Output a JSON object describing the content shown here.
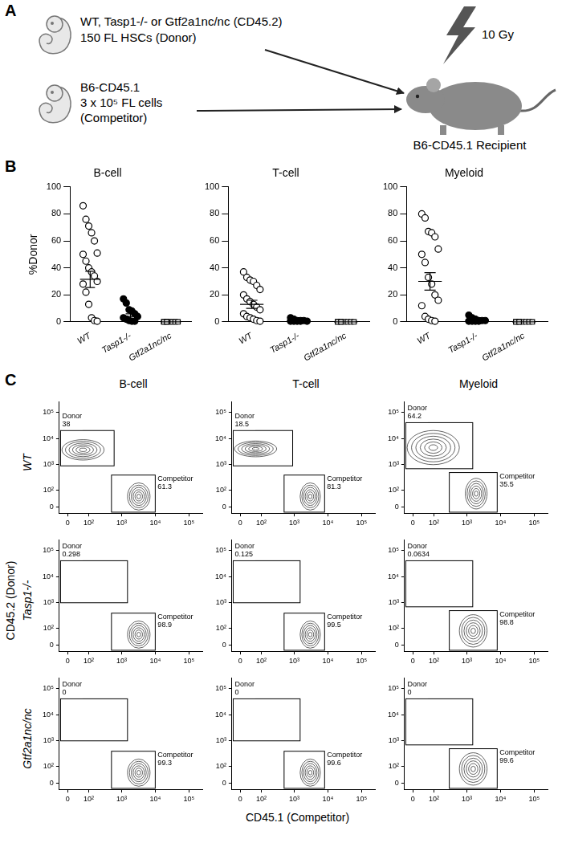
{
  "panel_labels": [
    "A",
    "B",
    "C"
  ],
  "diagram": {
    "donor": [
      "WT, Tasp1-/- or Gtf2a1nc/nc (CD45.2)",
      "150 FL HSCs (Donor)"
    ],
    "competitor": [
      "B6-CD45.1",
      "3 x 10⁵ FL cells",
      "(Competitor)"
    ],
    "irradiation": "10 Gy",
    "recipient": "B6-CD45.1 Recipient"
  },
  "chart_data": [
    {
      "type": "scatter",
      "title": "B-cell",
      "ylabel": "%Donor",
      "ylim": [
        0,
        100
      ],
      "yticks": [
        0,
        20,
        40,
        60,
        80,
        100
      ],
      "grid": false,
      "series": [
        {
          "name": "WT",
          "marker": "open_circle",
          "color": "#000000",
          "mean": 31.5,
          "error": 6,
          "values": [
            86,
            76,
            71,
            66,
            60,
            51,
            50,
            45,
            40,
            37,
            34,
            30,
            28,
            22,
            13,
            3,
            1,
            0.5
          ]
        },
        {
          "name": "Tasp1-/-",
          "marker": "filled_circle",
          "color": "#000000",
          "mean": 4,
          "error": 2,
          "values": [
            17,
            14,
            9,
            8,
            6,
            4,
            3,
            2,
            1,
            0.5,
            0.5
          ]
        },
        {
          "name": "Gtf2a1nc/nc",
          "marker": "open_square",
          "color": "#000000",
          "mean": 0,
          "error": 0,
          "values": [
            0,
            0,
            0,
            0,
            0,
            0,
            0,
            0
          ]
        }
      ]
    },
    {
      "type": "scatter",
      "title": "T-cell",
      "ylim": [
        0,
        100
      ],
      "yticks": [
        0,
        20,
        40,
        60,
        80,
        100
      ],
      "grid": false,
      "series": [
        {
          "name": "WT",
          "marker": "open_circle",
          "color": "#000000",
          "mean": 13,
          "error": 3,
          "values": [
            37,
            33,
            31,
            30,
            27,
            24,
            20,
            17,
            15,
            13,
            11,
            9,
            6,
            4,
            3,
            2,
            1,
            0.5
          ]
        },
        {
          "name": "Tasp1-/-",
          "marker": "filled_circle",
          "color": "#000000",
          "mean": 1,
          "error": 0.4,
          "values": [
            3,
            2,
            1,
            1,
            1,
            0.5,
            0.5,
            0.5,
            0.5,
            0.5
          ]
        },
        {
          "name": "Gtf2a1nc/nc",
          "marker": "open_square",
          "color": "#000000",
          "mean": 0,
          "error": 0,
          "values": [
            0,
            0,
            0,
            0,
            0,
            0,
            0,
            0
          ]
        }
      ]
    },
    {
      "type": "scatter",
      "title": "Myeloid",
      "ylim": [
        0,
        100
      ],
      "yticks": [
        0,
        20,
        40,
        60,
        80,
        100
      ],
      "grid": false,
      "series": [
        {
          "name": "WT",
          "marker": "open_circle",
          "color": "#000000",
          "mean": 30,
          "error": 6.5,
          "values": [
            80,
            77,
            67,
            66,
            63,
            54,
            50,
            44,
            33,
            28,
            20,
            16,
            12,
            4,
            2,
            1,
            0.5
          ]
        },
        {
          "name": "Tasp1-/-",
          "marker": "filled_circle",
          "color": "#000000",
          "mean": 1.3,
          "error": 0.5,
          "values": [
            5,
            3,
            2,
            1,
            1,
            1,
            0.5,
            0.5,
            0.5,
            0.5
          ]
        },
        {
          "name": "Gtf2a1nc/nc",
          "marker": "open_square",
          "color": "#000000",
          "mean": 0,
          "error": 0,
          "values": [
            0,
            0,
            0,
            0,
            0,
            0,
            0,
            0
          ]
        }
      ]
    }
  ],
  "flow_grid": {
    "type": "flow",
    "column_titles": [
      "B-cell",
      "T-cell",
      "Myeloid"
    ],
    "row_labels": [
      "WT",
      "Tasp1-/-",
      "Gtf2a1nc/nc"
    ],
    "xlabel": "CD45.1 (Competitor)",
    "ylabel": "CD45.2 (Donor)",
    "xlim": [
      -30,
      250000
    ],
    "ylim": [
      -30,
      250000
    ],
    "xticks": [
      0,
      {
        "value": 100,
        "label": "10²"
      },
      {
        "value": 1000,
        "label": "10³"
      },
      {
        "value": 10000,
        "label": "10⁴"
      },
      {
        "value": 100000,
        "label": "10⁵"
      }
    ],
    "yticks": [
      0,
      {
        "value": 100,
        "label": "10²"
      },
      {
        "value": 1000,
        "label": "10³"
      },
      {
        "value": 10000,
        "label": "10⁴"
      },
      {
        "value": 100000,
        "label": "10⁵"
      }
    ],
    "panels": [
      [
        {
          "gates": [
            {
              "name": "Donor",
              "value": 38,
              "x": [
                -25,
                600
              ],
              "y": [
                900,
                20000
              ]
            },
            {
              "name": "Competitor",
              "value": 61.3,
              "x": [
                500,
                10000
              ],
              "y": [
                -25,
                400
              ]
            }
          ],
          "populations": [
            {
              "x": [
                -20,
                300
              ],
              "y": [
                1500,
                9000
              ]
            },
            {
              "x": [
                1500,
                7000
              ],
              "y": [
                -15,
                200
              ]
            }
          ]
        },
        {
          "gates": [
            {
              "name": "Donor",
              "value": 18.5,
              "x": [
                -25,
                900
              ],
              "y": [
                900,
                20000
              ]
            },
            {
              "name": "Competitor",
              "value": 81.3,
              "x": [
                500,
                8000
              ],
              "y": [
                -25,
                400
              ]
            }
          ],
          "populations": [
            {
              "x": [
                -20,
                300
              ],
              "y": [
                2000,
                8000
              ]
            },
            {
              "x": [
                1500,
                6000
              ],
              "y": [
                -15,
                200
              ]
            }
          ]
        },
        {
          "gates": [
            {
              "name": "Donor",
              "value": 64.2,
              "x": [
                -25,
                1500
              ],
              "y": [
                700,
                40000
              ]
            },
            {
              "name": "Competitor",
              "value": 35.5,
              "x": [
                300,
                8000
              ],
              "y": [
                -25,
                500
              ]
            }
          ],
          "populations": [
            {
              "x": [
                -20,
                600
              ],
              "y": [
                1000,
                20000
              ]
            },
            {
              "x": [
                900,
                4000
              ],
              "y": [
                -10,
                300
              ]
            }
          ]
        }
      ],
      [
        {
          "gates": [
            {
              "name": "Donor",
              "value": 0.298,
              "x": [
                -25,
                1500
              ],
              "y": [
                1000,
                40000
              ]
            },
            {
              "name": "Competitor",
              "value": 98.9,
              "x": [
                500,
                10000
              ],
              "y": [
                -25,
                400
              ]
            }
          ],
          "populations": [
            {
              "x": [
                1500,
                7000
              ],
              "y": [
                -15,
                200
              ]
            }
          ]
        },
        {
          "gates": [
            {
              "name": "Donor",
              "value": 0.125,
              "x": [
                -25,
                1500
              ],
              "y": [
                1000,
                40000
              ]
            },
            {
              "name": "Competitor",
              "value": 99.5,
              "x": [
                500,
                8000
              ],
              "y": [
                -25,
                400
              ]
            }
          ],
          "populations": [
            {
              "x": [
                1500,
                6000
              ],
              "y": [
                -15,
                200
              ]
            }
          ]
        },
        {
          "gates": [
            {
              "name": "Donor",
              "value": 0.0634,
              "x": [
                -25,
                1500
              ],
              "y": [
                700,
                40000
              ]
            },
            {
              "name": "Competitor",
              "value": 98.8,
              "x": [
                300,
                8000
              ],
              "y": [
                -25,
                500
              ]
            }
          ],
          "populations": [
            {
              "x": [
                600,
                4000
              ],
              "y": [
                -10,
                350
              ]
            }
          ]
        }
      ],
      [
        {
          "gates": [
            {
              "name": "Donor",
              "value": 0,
              "x": [
                -25,
                1500
              ],
              "y": [
                1000,
                40000
              ]
            },
            {
              "name": "Competitor",
              "value": 99.3,
              "x": [
                500,
                10000
              ],
              "y": [
                -25,
                400
              ]
            }
          ],
          "populations": [
            {
              "x": [
                1500,
                7000
              ],
              "y": [
                -15,
                200
              ]
            }
          ]
        },
        {
          "gates": [
            {
              "name": "Donor",
              "value": 0,
              "x": [
                -25,
                1500
              ],
              "y": [
                1000,
                40000
              ]
            },
            {
              "name": "Competitor",
              "value": 99.6,
              "x": [
                500,
                8000
              ],
              "y": [
                -25,
                400
              ]
            }
          ],
          "populations": [
            {
              "x": [
                1500,
                6000
              ],
              "y": [
                -15,
                200
              ]
            }
          ]
        },
        {
          "gates": [
            {
              "name": "Donor",
              "value": 0,
              "x": [
                -25,
                1500
              ],
              "y": [
                700,
                40000
              ]
            },
            {
              "name": "Competitor",
              "value": 99.6,
              "x": [
                300,
                8000
              ],
              "y": [
                -25,
                500
              ]
            }
          ],
          "populations": [
            {
              "x": [
                600,
                4000
              ],
              "y": [
                -10,
                350
              ]
            }
          ]
        }
      ]
    ]
  }
}
